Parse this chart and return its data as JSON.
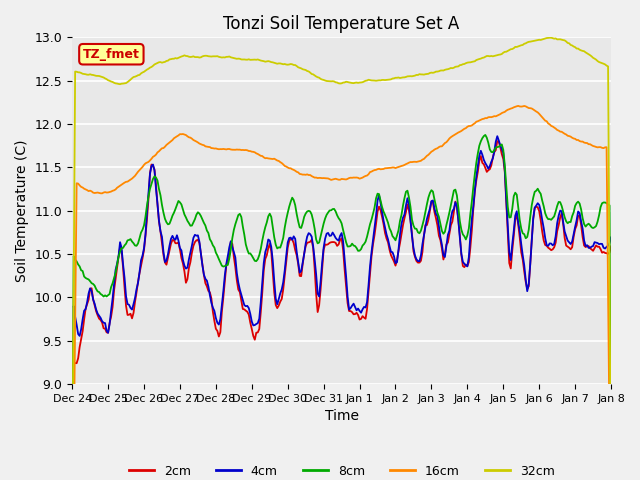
{
  "title": "Tonzi Soil Temperature Set A",
  "xlabel": "Time",
  "ylabel": "Soil Temperature (C)",
  "ylim": [
    9.0,
    13.0
  ],
  "yticks": [
    9.0,
    9.5,
    10.0,
    10.5,
    11.0,
    11.5,
    12.0,
    12.5,
    13.0
  ],
  "legend_labels": [
    "2cm",
    "4cm",
    "8cm",
    "16cm",
    "32cm"
  ],
  "legend_colors": [
    "#dd0000",
    "#0000cc",
    "#00aa00",
    "#ff8800",
    "#cccc00"
  ],
  "annotation_text": "TZ_fmet",
  "annotation_bg": "#ffff99",
  "annotation_border": "#cc0000",
  "plot_bg": "#e8e8e8",
  "fig_bg": "#f0f0f0",
  "x_tick_labels": [
    "Dec 24",
    "Dec 25",
    "Dec 26",
    "Dec 27",
    "Dec 28",
    "Dec 29",
    "Dec 30",
    "Dec 31",
    "Jan 1",
    "Jan 2",
    "Jan 3",
    "Jan 4",
    "Jan 5",
    "Jan 6",
    "Jan 7",
    "Jan 8"
  ],
  "x_tick_positions": [
    0,
    24,
    48,
    72,
    96,
    120,
    144,
    168,
    192,
    216,
    240,
    264,
    288,
    312,
    336,
    360
  ]
}
